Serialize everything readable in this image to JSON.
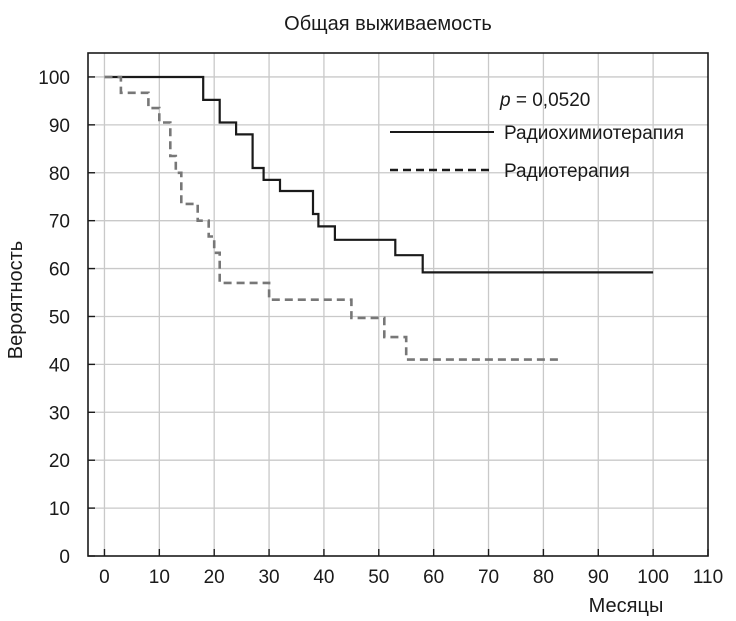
{
  "chart_data": {
    "type": "line",
    "title": "Общая выживаемость",
    "xlabel": "Месяцы",
    "ylabel": "Вероятность",
    "xlim": [
      -3,
      110
    ],
    "ylim": [
      0,
      105
    ],
    "x_ticks": [
      0,
      10,
      20,
      30,
      40,
      50,
      60,
      70,
      80,
      90,
      100,
      110
    ],
    "y_ticks": [
      0,
      10,
      20,
      30,
      40,
      50,
      60,
      70,
      80,
      90,
      100
    ],
    "grid": true,
    "step": true,
    "annotation": {
      "prefix": "p",
      "value": " = 0,0520"
    },
    "legend_position": "top-right",
    "series": [
      {
        "name": "Радиохимиотерапия",
        "style": "solid",
        "color": "#1a1a1a",
        "points": [
          [
            0,
            100
          ],
          [
            18,
            100
          ],
          [
            18,
            95.2
          ],
          [
            21,
            95.2
          ],
          [
            21,
            90.5
          ],
          [
            24,
            90.5
          ],
          [
            24,
            88
          ],
          [
            27,
            88
          ],
          [
            27,
            81
          ],
          [
            29,
            81
          ],
          [
            29,
            78.5
          ],
          [
            32,
            78.5
          ],
          [
            32,
            76.2
          ],
          [
            38,
            76.2
          ],
          [
            38,
            71.4
          ],
          [
            39,
            71.4
          ],
          [
            39,
            68.8
          ],
          [
            42,
            68.8
          ],
          [
            42,
            66
          ],
          [
            53,
            66
          ],
          [
            53,
            62.8
          ],
          [
            58,
            62.8
          ],
          [
            58,
            59.2
          ],
          [
            100,
            59.2
          ]
        ]
      },
      {
        "name": "Радиотерапия",
        "style": "dashed",
        "color": "#777777",
        "points": [
          [
            0,
            100
          ],
          [
            3,
            100
          ],
          [
            3,
            96.7
          ],
          [
            8,
            96.7
          ],
          [
            8,
            93.5
          ],
          [
            10,
            93.5
          ],
          [
            10,
            90.5
          ],
          [
            12,
            90.5
          ],
          [
            12,
            83.5
          ],
          [
            13,
            83.5
          ],
          [
            13,
            80
          ],
          [
            14,
            80
          ],
          [
            14,
            73.5
          ],
          [
            17,
            73.5
          ],
          [
            17,
            70
          ],
          [
            19,
            70
          ],
          [
            19,
            66.7
          ],
          [
            20,
            66.7
          ],
          [
            20,
            63.3
          ],
          [
            21,
            63.3
          ],
          [
            21,
            57
          ],
          [
            30,
            57
          ],
          [
            30,
            53.5
          ],
          [
            45,
            53.5
          ],
          [
            45,
            49.7
          ],
          [
            51,
            49.7
          ],
          [
            51,
            45.7
          ],
          [
            55,
            45.7
          ],
          [
            55,
            41
          ],
          [
            83,
            41
          ]
        ]
      }
    ]
  }
}
